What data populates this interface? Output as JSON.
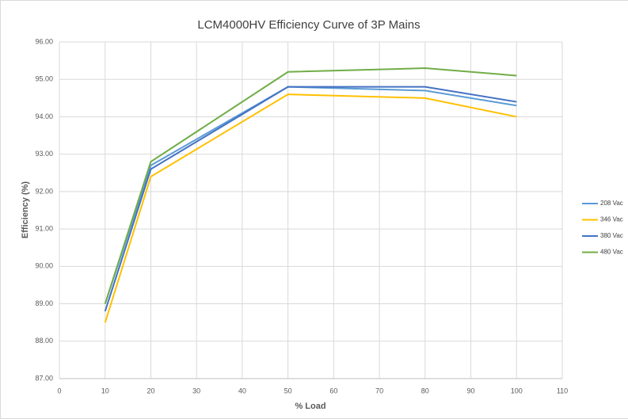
{
  "chart_data": {
    "type": "line",
    "title": "LCM4000HV Efficiency Curve of 3P Mains",
    "x_label": "% Load",
    "y_label": "Efficiency (%)",
    "x": [
      10,
      20,
      50,
      80,
      100
    ],
    "series": [
      {
        "name": "208 Vac",
        "color": "#5b9bd5",
        "values": [
          89.0,
          92.7,
          94.8,
          94.7,
          94.3
        ]
      },
      {
        "name": "346 Vac",
        "color": "#ffc000",
        "values": [
          88.5,
          92.4,
          94.6,
          94.5,
          94.0
        ]
      },
      {
        "name": "380 Vac",
        "color": "#4472c4",
        "values": [
          88.8,
          92.6,
          94.8,
          94.8,
          94.4
        ]
      },
      {
        "name": "480 Vac",
        "color": "#70ad47",
        "values": [
          89.0,
          92.8,
          95.2,
          95.3,
          95.1
        ]
      }
    ],
    "xlim": [
      0,
      110
    ],
    "xticks": [
      0,
      10,
      20,
      30,
      40,
      50,
      60,
      70,
      80,
      90,
      100,
      110
    ],
    "ylim": [
      87,
      96
    ],
    "yticks": [
      {
        "value": 87,
        "label": "87.00"
      },
      {
        "value": 88,
        "label": "88.00"
      },
      {
        "value": 89,
        "label": "89.00"
      },
      {
        "value": 90,
        "label": "90.00"
      },
      {
        "value": 91,
        "label": "91.00"
      },
      {
        "value": 92,
        "label": "92.00"
      },
      {
        "value": 93,
        "label": "93.00"
      },
      {
        "value": 94,
        "label": "94.00"
      },
      {
        "value": 95,
        "label": "95.00"
      },
      {
        "value": 96,
        "label": "96.00"
      }
    ],
    "grid": true,
    "legend": "right"
  }
}
